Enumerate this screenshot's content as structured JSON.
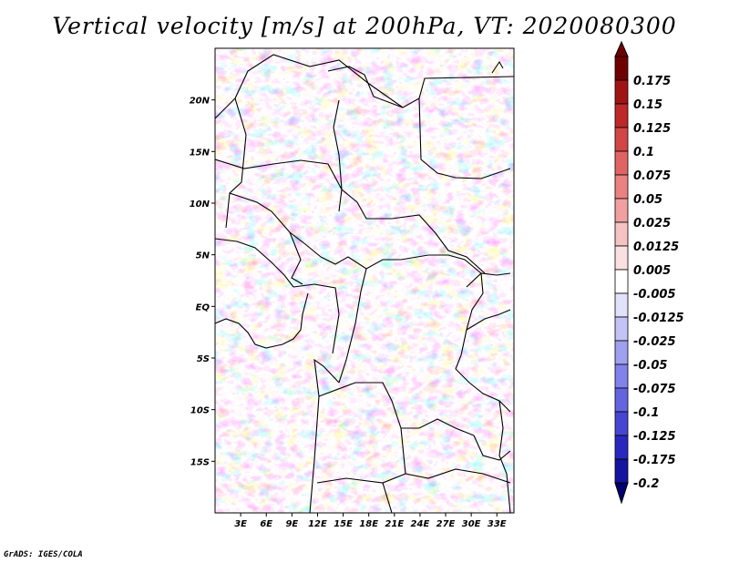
{
  "title": "Vertical velocity [m/s] at 200hPa, VT: 2020080300",
  "credit": "GrADS: IGES/COLA",
  "chart_data": {
    "type": "heatmap",
    "variable": "Vertical velocity",
    "units": "m/s",
    "level": "200hPa",
    "valid_time": "2020080300",
    "x_axis": {
      "range": [
        0,
        35
      ],
      "ticks": [
        3,
        6,
        9,
        12,
        15,
        18,
        21,
        24,
        27,
        30,
        33
      ],
      "tick_labels": [
        "3E",
        "6E",
        "9E",
        "12E",
        "15E",
        "18E",
        "21E",
        "24E",
        "27E",
        "30E",
        "33E"
      ]
    },
    "y_axis": {
      "range": [
        -20,
        25
      ],
      "ticks": [
        20,
        15,
        10,
        5,
        0,
        -5,
        -10,
        -15
      ],
      "tick_labels": [
        "20N",
        "15N",
        "10N",
        "5N",
        "EQ",
        "5S",
        "10S",
        "15S"
      ]
    },
    "colorbar": {
      "levels": [
        0.175,
        0.15,
        0.125,
        0.1,
        0.075,
        0.05,
        0.025,
        0.0125,
        0.005,
        -0.005,
        -0.0125,
        -0.025,
        -0.05,
        -0.075,
        -0.1,
        -0.125,
        -0.175,
        -0.2
      ],
      "labels": [
        "0.175",
        "0.15",
        "0.125",
        "0.1",
        "0.075",
        "0.05",
        "0.025",
        "0.0125",
        "0.005",
        "-0.005",
        "-0.0125",
        "-0.025",
        "-0.05",
        "-0.075",
        "-0.1",
        "-0.125",
        "-0.175",
        "-0.2"
      ],
      "colors": [
        "#6e0000",
        "#a01414",
        "#be2828",
        "#d24646",
        "#e16464",
        "#eb8282",
        "#f0a0a0",
        "#f5c3c3",
        "#fae1e1",
        "#ffffff",
        "#e1e1fa",
        "#c3c3f5",
        "#a0a0f0",
        "#8282eb",
        "#6464e1",
        "#4646d2",
        "#2828be",
        "#1414a0",
        "#00006e"
      ]
    }
  }
}
